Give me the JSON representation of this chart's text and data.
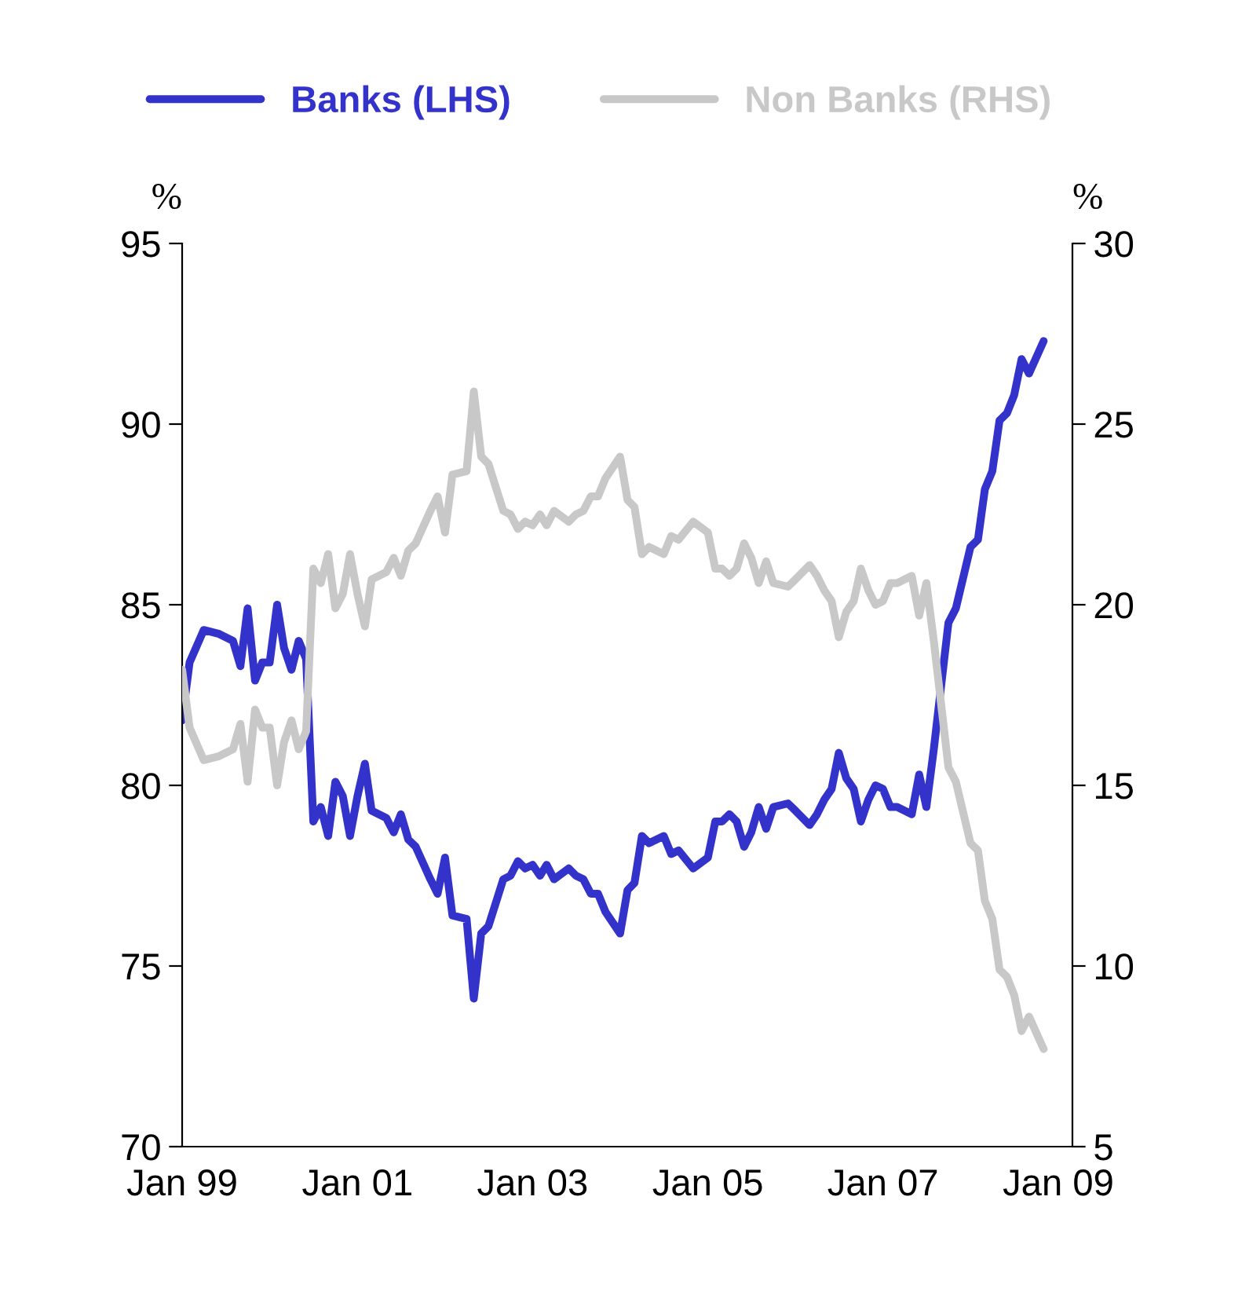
{
  "chart_data": {
    "type": "line",
    "x": [
      "1999-01",
      "1999-02",
      "1999-04",
      "1999-06",
      "1999-08",
      "1999-09",
      "1999-10",
      "1999-11",
      "1999-12",
      "2000-01",
      "2000-02",
      "2000-03",
      "2000-04",
      "2000-05",
      "2000-06",
      "2000-07",
      "2000-08",
      "2000-09",
      "2000-10",
      "2000-11",
      "2000-12",
      "2001-01",
      "2001-02",
      "2001-03",
      "2001-05",
      "2001-06",
      "2001-07",
      "2001-08",
      "2001-09",
      "2001-11",
      "2001-12",
      "2002-01",
      "2002-02",
      "2002-04",
      "2002-05",
      "2002-06",
      "2002-07",
      "2002-09",
      "2002-10",
      "2002-11",
      "2002-12",
      "2003-01",
      "2003-02",
      "2003-03",
      "2003-04",
      "2003-06",
      "2003-07",
      "2003-08",
      "2003-09",
      "2003-10",
      "2003-11",
      "2004-01",
      "2004-02",
      "2004-03",
      "2004-04",
      "2004-05",
      "2004-07",
      "2004-08",
      "2004-09",
      "2004-11",
      "2005-01",
      "2005-02",
      "2005-03",
      "2005-04",
      "2005-05",
      "2005-06",
      "2005-07",
      "2005-08",
      "2005-09",
      "2005-10",
      "2005-12",
      "2006-01",
      "2006-03",
      "2006-04",
      "2006-05",
      "2006-06",
      "2006-07",
      "2006-08",
      "2006-09",
      "2006-10",
      "2006-11",
      "2006-12",
      "2007-01",
      "2007-02",
      "2007-03",
      "2007-05",
      "2007-06",
      "2007-07",
      "2007-08",
      "2007-10",
      "2007-11",
      "2008-01",
      "2008-02",
      "2008-03",
      "2008-04",
      "2008-05",
      "2008-06",
      "2008-07",
      "2008-08",
      "2008-09",
      "2008-11"
    ],
    "series": [
      {
        "name": "Banks (LHS)",
        "color": "#3333cc",
        "values": [
          81.8,
          83.4,
          84.3,
          84.2,
          84.0,
          83.3,
          84.9,
          82.9,
          83.4,
          83.4,
          85.0,
          83.8,
          83.2,
          84.0,
          83.5,
          79.0,
          79.4,
          78.6,
          80.1,
          79.7,
          78.6,
          79.7,
          80.6,
          79.3,
          79.1,
          78.7,
          79.2,
          78.5,
          78.3,
          77.4,
          77.0,
          78.0,
          76.4,
          76.3,
          74.1,
          75.9,
          76.1,
          77.4,
          77.5,
          77.9,
          77.7,
          77.8,
          77.5,
          77.8,
          77.4,
          77.7,
          77.5,
          77.4,
          77.0,
          77.0,
          76.5,
          75.9,
          77.1,
          77.3,
          78.6,
          78.4,
          78.6,
          78.1,
          78.2,
          77.7,
          78.0,
          79.0,
          79.0,
          79.2,
          79.0,
          78.3,
          78.7,
          79.4,
          78.8,
          79.4,
          79.5,
          79.3,
          78.9,
          79.2,
          79.6,
          79.9,
          80.9,
          80.2,
          79.9,
          79.0,
          79.6,
          80.0,
          79.9,
          79.4,
          79.4,
          79.2,
          80.3,
          79.4,
          81.0,
          84.5,
          84.9,
          86.6,
          86.8,
          88.2,
          88.7,
          90.1,
          90.3,
          90.8,
          91.8,
          91.4,
          92.3
        ]
      },
      {
        "name": "Non Banks (RHS)",
        "color": "#c8c8c8",
        "axis": "y2",
        "values": [
          18.2,
          16.6,
          15.7,
          15.8,
          16.0,
          16.7,
          15.1,
          17.1,
          16.6,
          16.6,
          15.0,
          16.2,
          16.8,
          16.0,
          16.5,
          21.0,
          20.6,
          21.4,
          19.9,
          20.3,
          21.4,
          20.3,
          19.4,
          20.7,
          20.9,
          21.3,
          20.8,
          21.5,
          21.7,
          22.6,
          23.0,
          22.0,
          23.6,
          23.7,
          25.9,
          24.1,
          23.9,
          22.6,
          22.5,
          22.1,
          22.3,
          22.2,
          22.5,
          22.2,
          22.6,
          22.3,
          22.5,
          22.6,
          23.0,
          23.0,
          23.5,
          24.1,
          22.9,
          22.7,
          21.4,
          21.6,
          21.4,
          21.9,
          21.8,
          22.3,
          22.0,
          21.0,
          21.0,
          20.8,
          21.0,
          21.7,
          21.3,
          20.6,
          21.2,
          20.6,
          20.5,
          20.7,
          21.1,
          20.8,
          20.4,
          20.1,
          19.1,
          19.8,
          20.1,
          21.0,
          20.4,
          20.0,
          20.1,
          20.6,
          20.6,
          20.8,
          19.7,
          20.6,
          19.0,
          15.5,
          15.1,
          13.4,
          13.2,
          11.8,
          11.3,
          9.9,
          9.7,
          9.2,
          8.2,
          8.6,
          7.7
        ]
      }
    ],
    "ylabel": "%",
    "y2label": "%",
    "xlim": [
      "1999-01",
      "2009-03"
    ],
    "xticks": [
      {
        "value": "1999-01",
        "label": "Jan 99"
      },
      {
        "value": "2001-01",
        "label": "Jan 01"
      },
      {
        "value": "2003-01",
        "label": "Jan 03"
      },
      {
        "value": "2005-01",
        "label": "Jan 05"
      },
      {
        "value": "2007-01",
        "label": "Jan 07"
      },
      {
        "value": "2009-01",
        "label": "Jan 09"
      }
    ],
    "ylim": [
      70,
      95
    ],
    "yticks": [
      70,
      75,
      80,
      85,
      90,
      95
    ],
    "y2lim": [
      5,
      30
    ],
    "y2ticks": [
      5,
      10,
      15,
      20,
      25,
      30
    ],
    "grid": false,
    "legend": "top",
    "marker": "none",
    "line_style": "solid"
  }
}
